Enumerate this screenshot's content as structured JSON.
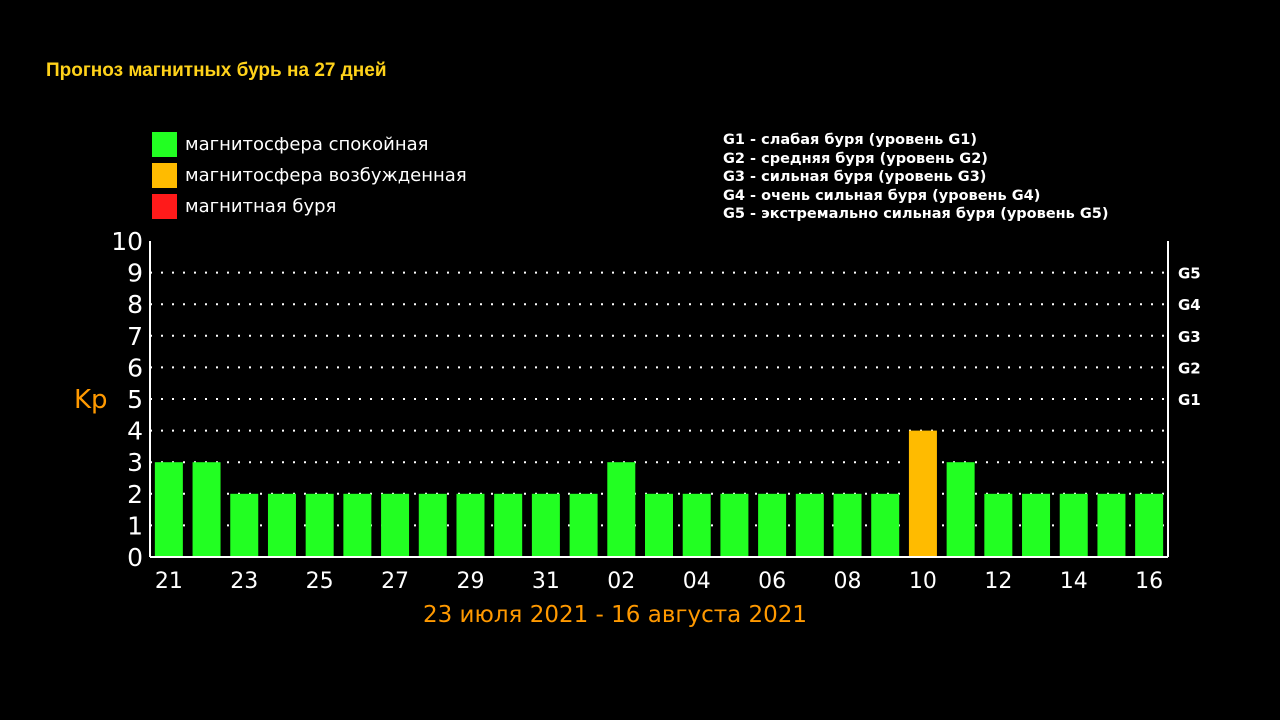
{
  "title": "Прогноз магнитных бурь на 27 дней",
  "subtitle": "23 июля 2021 - 16 августа 2021",
  "legend": [
    {
      "label": "магнитосфера спокойная",
      "color": "#22ff22"
    },
    {
      "label": "магнитосфера возбужденная",
      "color": "#ffbb00"
    },
    {
      "label": "магнитная буря",
      "color": "#ff1a1a"
    }
  ],
  "g_levels": [
    "G1 - слабая буря (уровень G1)",
    "G2 - средняя буря (уровень G2)",
    "G3 - сильная буря (уровень G3)",
    "G4 - очень сильная буря (уровень G4)",
    "G5 - экстремально сильная буря (уровень G5)"
  ],
  "chart_data": {
    "type": "bar",
    "ylabel": "Kp",
    "ylim": [
      0,
      10
    ],
    "yticks": [
      0,
      1,
      2,
      3,
      4,
      5,
      6,
      7,
      8,
      9,
      10
    ],
    "right_labels": [
      {
        "y": 5,
        "label": "G1"
      },
      {
        "y": 6,
        "label": "G2"
      },
      {
        "y": 7,
        "label": "G3"
      },
      {
        "y": 8,
        "label": "G4"
      },
      {
        "y": 9,
        "label": "G5"
      }
    ],
    "grid": "dotted-horizontal",
    "xtick_labels": [
      "21",
      "23",
      "25",
      "27",
      "29",
      "31",
      "02",
      "04",
      "06",
      "08",
      "10",
      "12",
      "14",
      "16"
    ],
    "values": [
      3,
      3,
      2,
      2,
      2,
      2,
      2,
      2,
      2,
      2,
      2,
      2,
      3,
      2,
      2,
      2,
      2,
      2,
      2,
      2,
      4,
      3,
      2,
      2,
      2,
      2,
      2
    ],
    "colors": {
      "quiet": "#22ff22",
      "disturbed": "#ffbb00",
      "storm": "#ff1a1a"
    }
  }
}
